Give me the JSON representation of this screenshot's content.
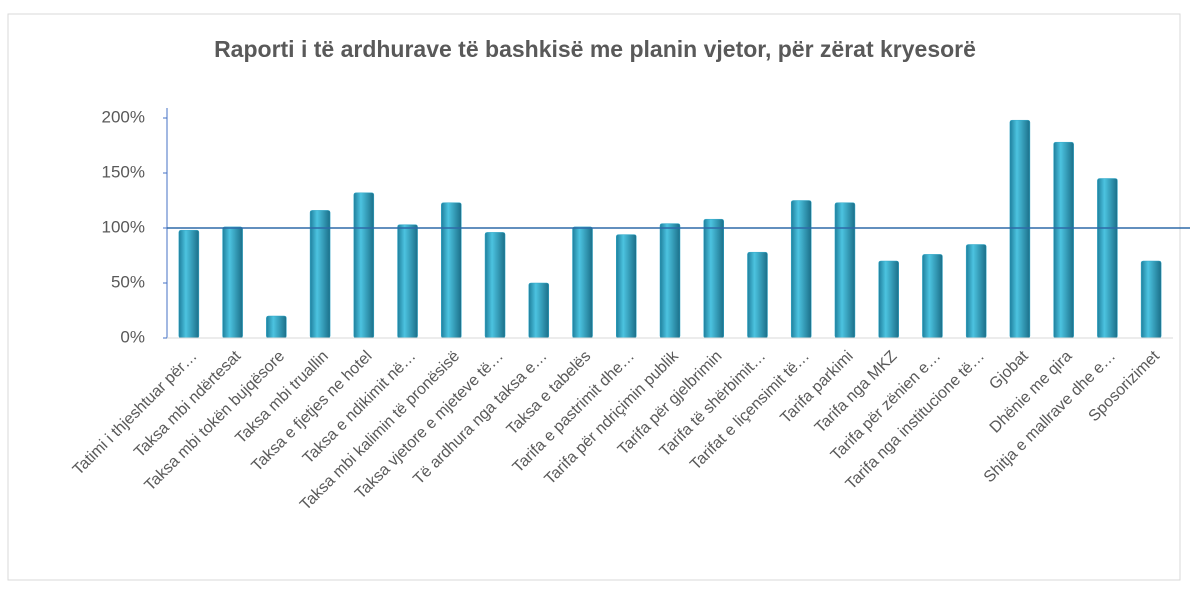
{
  "chart_data": {
    "type": "bar",
    "title": "Raporti i të ardhurave të bashkisë me planin vjetor, për zërat kryesorë",
    "categories": [
      "Tatimi i thjeshtuar për…",
      "Taksa mbi ndërtesat",
      "Taksa mbi tokën bujqësore",
      "Taksa mbi truallin",
      "Taksa e fjetjes ne hotel",
      "Taksa e ndikimit në…",
      "Taksa mbi kalimin të pronësisë",
      "Taksa vjetore e mjeteve të…",
      "Të ardhura nga taksa e…",
      "Taksa e tabelës",
      "Tarifa e pastrimit dhe…",
      "Tarifa për ndriçimin publik",
      "Tarifa për gjelbrimin",
      "Tarifa të shërbimit…",
      "Tarifat e liçensimit të…",
      "Tarifa parkimi",
      "Tarifa nga MKZ",
      "Tarifa për zënien e…",
      "Tarifa nga institucione të…",
      "Gjobat",
      "Dhënie me qira",
      "Shitja e mallrave dhe e…",
      "Sposorizimet"
    ],
    "values": [
      98,
      101,
      20,
      116,
      132,
      103,
      123,
      96,
      50,
      101,
      94,
      104,
      108,
      78,
      125,
      123,
      70,
      76,
      85,
      198,
      178,
      145,
      70
    ],
    "color": "#2fa7c8",
    "target": 100,
    "ylim": [
      0,
      200
    ],
    "yticks": [
      {
        "value": 0,
        "label": "0%"
      },
      {
        "value": 50,
        "label": "50%"
      },
      {
        "value": 100,
        "label": "100%"
      },
      {
        "value": 150,
        "label": "150%"
      },
      {
        "value": 200,
        "label": "200%"
      }
    ],
    "grid": false
  }
}
